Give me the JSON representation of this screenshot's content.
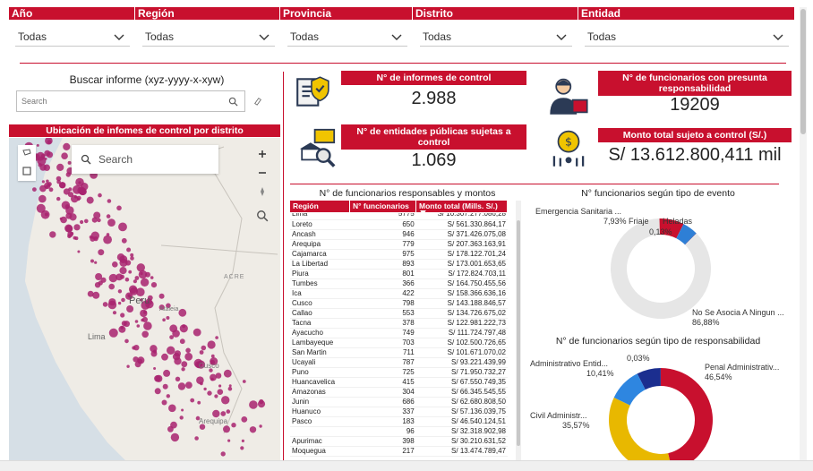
{
  "filters": [
    {
      "label": "Año",
      "value": "Todas"
    },
    {
      "label": "Región",
      "value": "Todas"
    },
    {
      "label": "Provincia",
      "value": "Todas"
    },
    {
      "label": "Distrito",
      "value": "Todas"
    },
    {
      "label": "Entidad",
      "value": "Todas"
    }
  ],
  "search": {
    "title": "Buscar informe (xyz-yyyy-x-xyw)",
    "placeholder": "Search"
  },
  "map": {
    "title": "Ubicación de infomes de control por distrito",
    "search_placeholder": "Search",
    "country_label": "Peru",
    "labels": [
      "Lima",
      "Ataleia",
      "Cusco",
      "Arequipa",
      "ACRE"
    ]
  },
  "kpis": {
    "informes": {
      "title": "N° de informes de control",
      "value": "2.988"
    },
    "entidades": {
      "title": "N° de entidades públicas sujetas a control",
      "value": "1.069"
    },
    "funcionarios": {
      "title": "N° de funcionarios con presunta responsabilidad",
      "value": "19209"
    },
    "monto": {
      "title": "Monto total sujeto a control (S/.)",
      "value": "S/ 13.612.800,411 mil"
    }
  },
  "table": {
    "title": "N° de funcionarios responsables y montos",
    "headers": [
      "Región",
      "N° funcionarios",
      "Monto total (Mills. S/.)"
    ],
    "rows": [
      [
        "Lima",
        "5775",
        "S/ 10.307.277.086,28"
      ],
      [
        "Loreto",
        "650",
        "S/ 561.330.864,17"
      ],
      [
        "Ancash",
        "946",
        "S/ 371.426.075,08"
      ],
      [
        "Arequipa",
        "779",
        "S/ 207.363.163,91"
      ],
      [
        "Cajamarca",
        "975",
        "S/ 178.122.701,24"
      ],
      [
        "La Libertad",
        "893",
        "S/ 173.001.653,65"
      ],
      [
        "Piura",
        "801",
        "S/ 172.824.703,11"
      ],
      [
        "Tumbes",
        "366",
        "S/ 164.750.455,56"
      ],
      [
        "Ica",
        "422",
        "S/ 158.366.636,16"
      ],
      [
        "Cusco",
        "798",
        "S/ 143.188.846,57"
      ],
      [
        "Callao",
        "553",
        "S/ 134.726.675,02"
      ],
      [
        "Tacna",
        "378",
        "S/ 122.981.222,73"
      ],
      [
        "Ayacucho",
        "749",
        "S/ 111.724.797,48"
      ],
      [
        "Lambayeque",
        "703",
        "S/ 102.500.726,65"
      ],
      [
        "San Martin",
        "711",
        "S/ 101.671.070,02"
      ],
      [
        "Ucayali",
        "787",
        "S/ 93.221.439,99"
      ],
      [
        "Puno",
        "725",
        "S/ 71.950.732,27"
      ],
      [
        "Huancavelica",
        "415",
        "S/ 67.550.749,35"
      ],
      [
        "Amazonas",
        "304",
        "S/ 66.345.545,55"
      ],
      [
        "Junin",
        "686",
        "S/ 62.680.808,50"
      ],
      [
        "Huanuco",
        "337",
        "S/ 57.136.039,75"
      ],
      [
        "Pasco",
        "183",
        "S/ 46.540.124,51"
      ],
      [
        "",
        "96",
        "S/ 32.318.902,98"
      ],
      [
        "Apurimac",
        "398",
        "S/ 30.210.631,52"
      ],
      [
        "Moquegua",
        "217",
        "S/ 13.474.789,47"
      ]
    ]
  },
  "chart_data": [
    {
      "type": "pie",
      "title": "N° funcionarios según tipo de evento",
      "labels": [
        "No Se Asocia A Ningun ...",
        "Emergencia Sanitaria ...",
        "Friaje",
        "Heladas"
      ],
      "values": [
        86.88,
        7.93,
        4.9,
        0.13
      ],
      "display": [
        "86,88%",
        "7,93%",
        "",
        "0,13%"
      ],
      "colors": [
        "#e6e6e6",
        "#c8102e",
        "#2e7fd6",
        "#1b2e8f"
      ]
    },
    {
      "type": "pie",
      "title": "N° de funcionarios según tipo de responsabilidad",
      "labels": [
        "Penal Administrativ...",
        "Civil Administr...",
        "Administrativo Entid...",
        "",
        ""
      ],
      "values": [
        46.54,
        35.57,
        10.41,
        7.45,
        0.03
      ],
      "display": [
        "46,54%",
        "35,57%",
        "10,41%",
        "",
        "0,03%"
      ],
      "colors": [
        "#c8102e",
        "#e8b800",
        "#2e86e0",
        "#1b2e8f",
        "#7a1f6e"
      ]
    }
  ]
}
